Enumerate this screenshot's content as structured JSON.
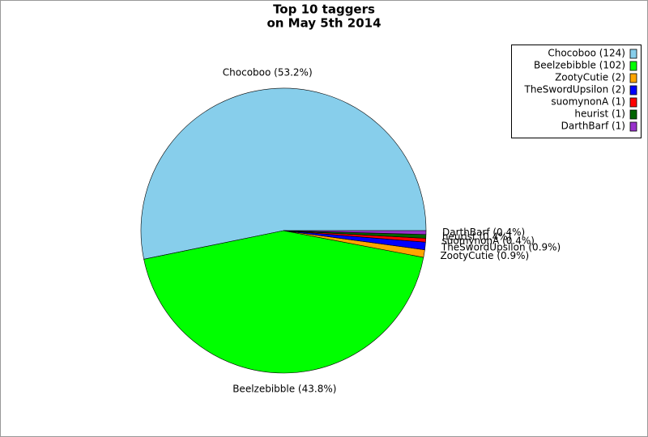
{
  "chart_data": {
    "type": "pie",
    "title_lines": [
      "Top 10 taggers",
      "on May 5th 2014"
    ],
    "values": [
      124,
      102,
      2,
      2,
      1,
      1,
      1
    ],
    "value_labels": [
      "Chocoboo (53.2%)",
      "Beelzebibble (43.8%)",
      "ZootyCutie (0.9%)",
      "TheSwordUpsilon (0.9%)",
      "suomynonA (0.4%)",
      "heurist (0.4%)",
      "DarthBarf (0.4%)"
    ],
    "legend_labels": [
      "Chocoboo (124)",
      "Beelzebibble (102)",
      "ZootyCutie (2)",
      "TheSwordUpsilon (2)",
      "suomynonA (1)",
      "heurist (1)",
      "DarthBarf (1)"
    ],
    "colors": [
      "#87ceeb",
      "#00ff00",
      "#ffa500",
      "#0000ff",
      "#ff0000",
      "#006400",
      "#9932cc"
    ],
    "legend": "top-right"
  }
}
